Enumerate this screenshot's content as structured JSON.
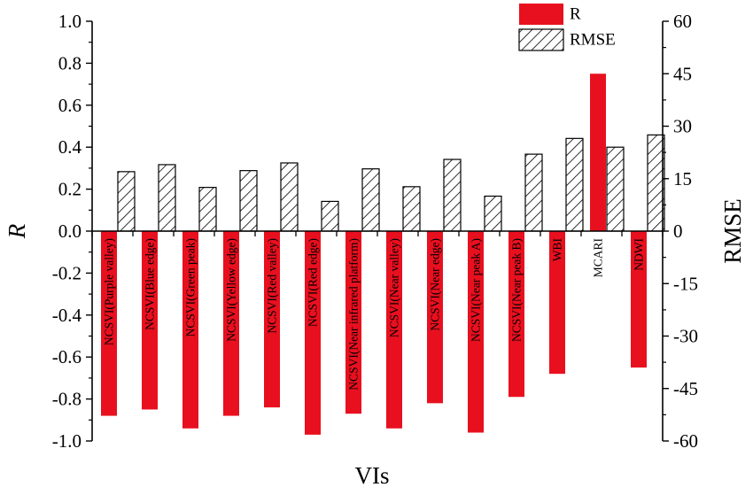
{
  "chart_data": {
    "type": "bar",
    "xlabel": "VIs",
    "ylabel": "R",
    "ylabel_right": "RMSE",
    "ylim": [
      -1.0,
      1.0
    ],
    "ylim_right": [
      -60,
      60
    ],
    "yticks": [
      "1.0",
      "0.8",
      "0.6",
      "0.4",
      "0.2",
      "0.0",
      "-0.2",
      "-0.4",
      "-0.6",
      "-0.8",
      "-1.0"
    ],
    "yticks_right": [
      "60",
      "45",
      "30",
      "15",
      "0",
      "-15",
      "-30",
      "-45",
      "-60"
    ],
    "categories": [
      "NCSVI(Purple valley)",
      "NCSVI(Blue edge)",
      "NCSVI(Green peak)",
      "NCSVI(Yellow edge)",
      "NCSVI(Red valley)",
      "NCSVI(Red edge)",
      "NCSVI(Near infrared platform)",
      "NCSVI(Near valley)",
      "NCSVI(Near edge)",
      "NCSVI(Near peak A)",
      "NCSVI(Near peak B)",
      "WBI",
      "MCARI",
      "NDWI"
    ],
    "series": [
      {
        "name": "R",
        "axis": "left",
        "color": "#e8101f",
        "values": [
          -0.88,
          -0.85,
          -0.94,
          -0.88,
          -0.84,
          -0.97,
          -0.87,
          -0.94,
          -0.82,
          -0.96,
          -0.79,
          -0.68,
          0.75,
          -0.65
        ]
      },
      {
        "name": "RMSE",
        "axis": "right",
        "pattern": "diagonal-hatch",
        "values": [
          17,
          19,
          12.5,
          17.3,
          19.5,
          8.5,
          17.8,
          12.7,
          20.5,
          10,
          22,
          26.5,
          24,
          27.5
        ]
      }
    ],
    "grid": false,
    "legend_position": "top-right"
  }
}
